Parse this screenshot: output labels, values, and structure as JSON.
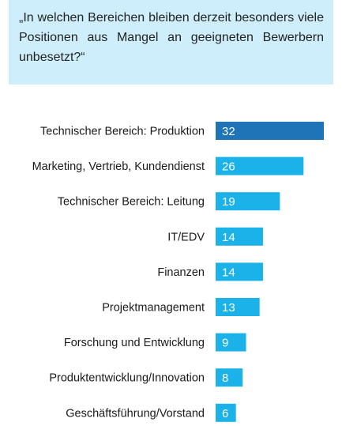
{
  "question": "„In welchen Bereichen bleiben derzeit besonders viele Positionen aus Mangel an geeigneten Bewerbern unbesetzt?“",
  "chart_data": {
    "type": "bar",
    "orientation": "horizontal",
    "categories": [
      "Technischer Bereich: Produktion",
      "Marketing, Vertrieb, Kundendienst",
      "Technischer Bereich: Leitung",
      "IT/EDV",
      "Finanzen",
      "Projektmanagement",
      "Forschung und Entwicklung",
      "Produktentwicklung/Innovation",
      "Geschäftsführung/Vorstand"
    ],
    "values": [
      32,
      26,
      19,
      14,
      14,
      13,
      9,
      8,
      6
    ],
    "data_labels": [
      "32",
      "26",
      "19",
      "14",
      "14",
      "13",
      "9",
      "8",
      "6"
    ],
    "xlim": [
      0,
      32
    ],
    "grid": false,
    "legend": "none",
    "colors": {
      "highlight": "#1f74b8",
      "bar": "#1ab2e8",
      "question_background": "#cdeefa"
    }
  }
}
